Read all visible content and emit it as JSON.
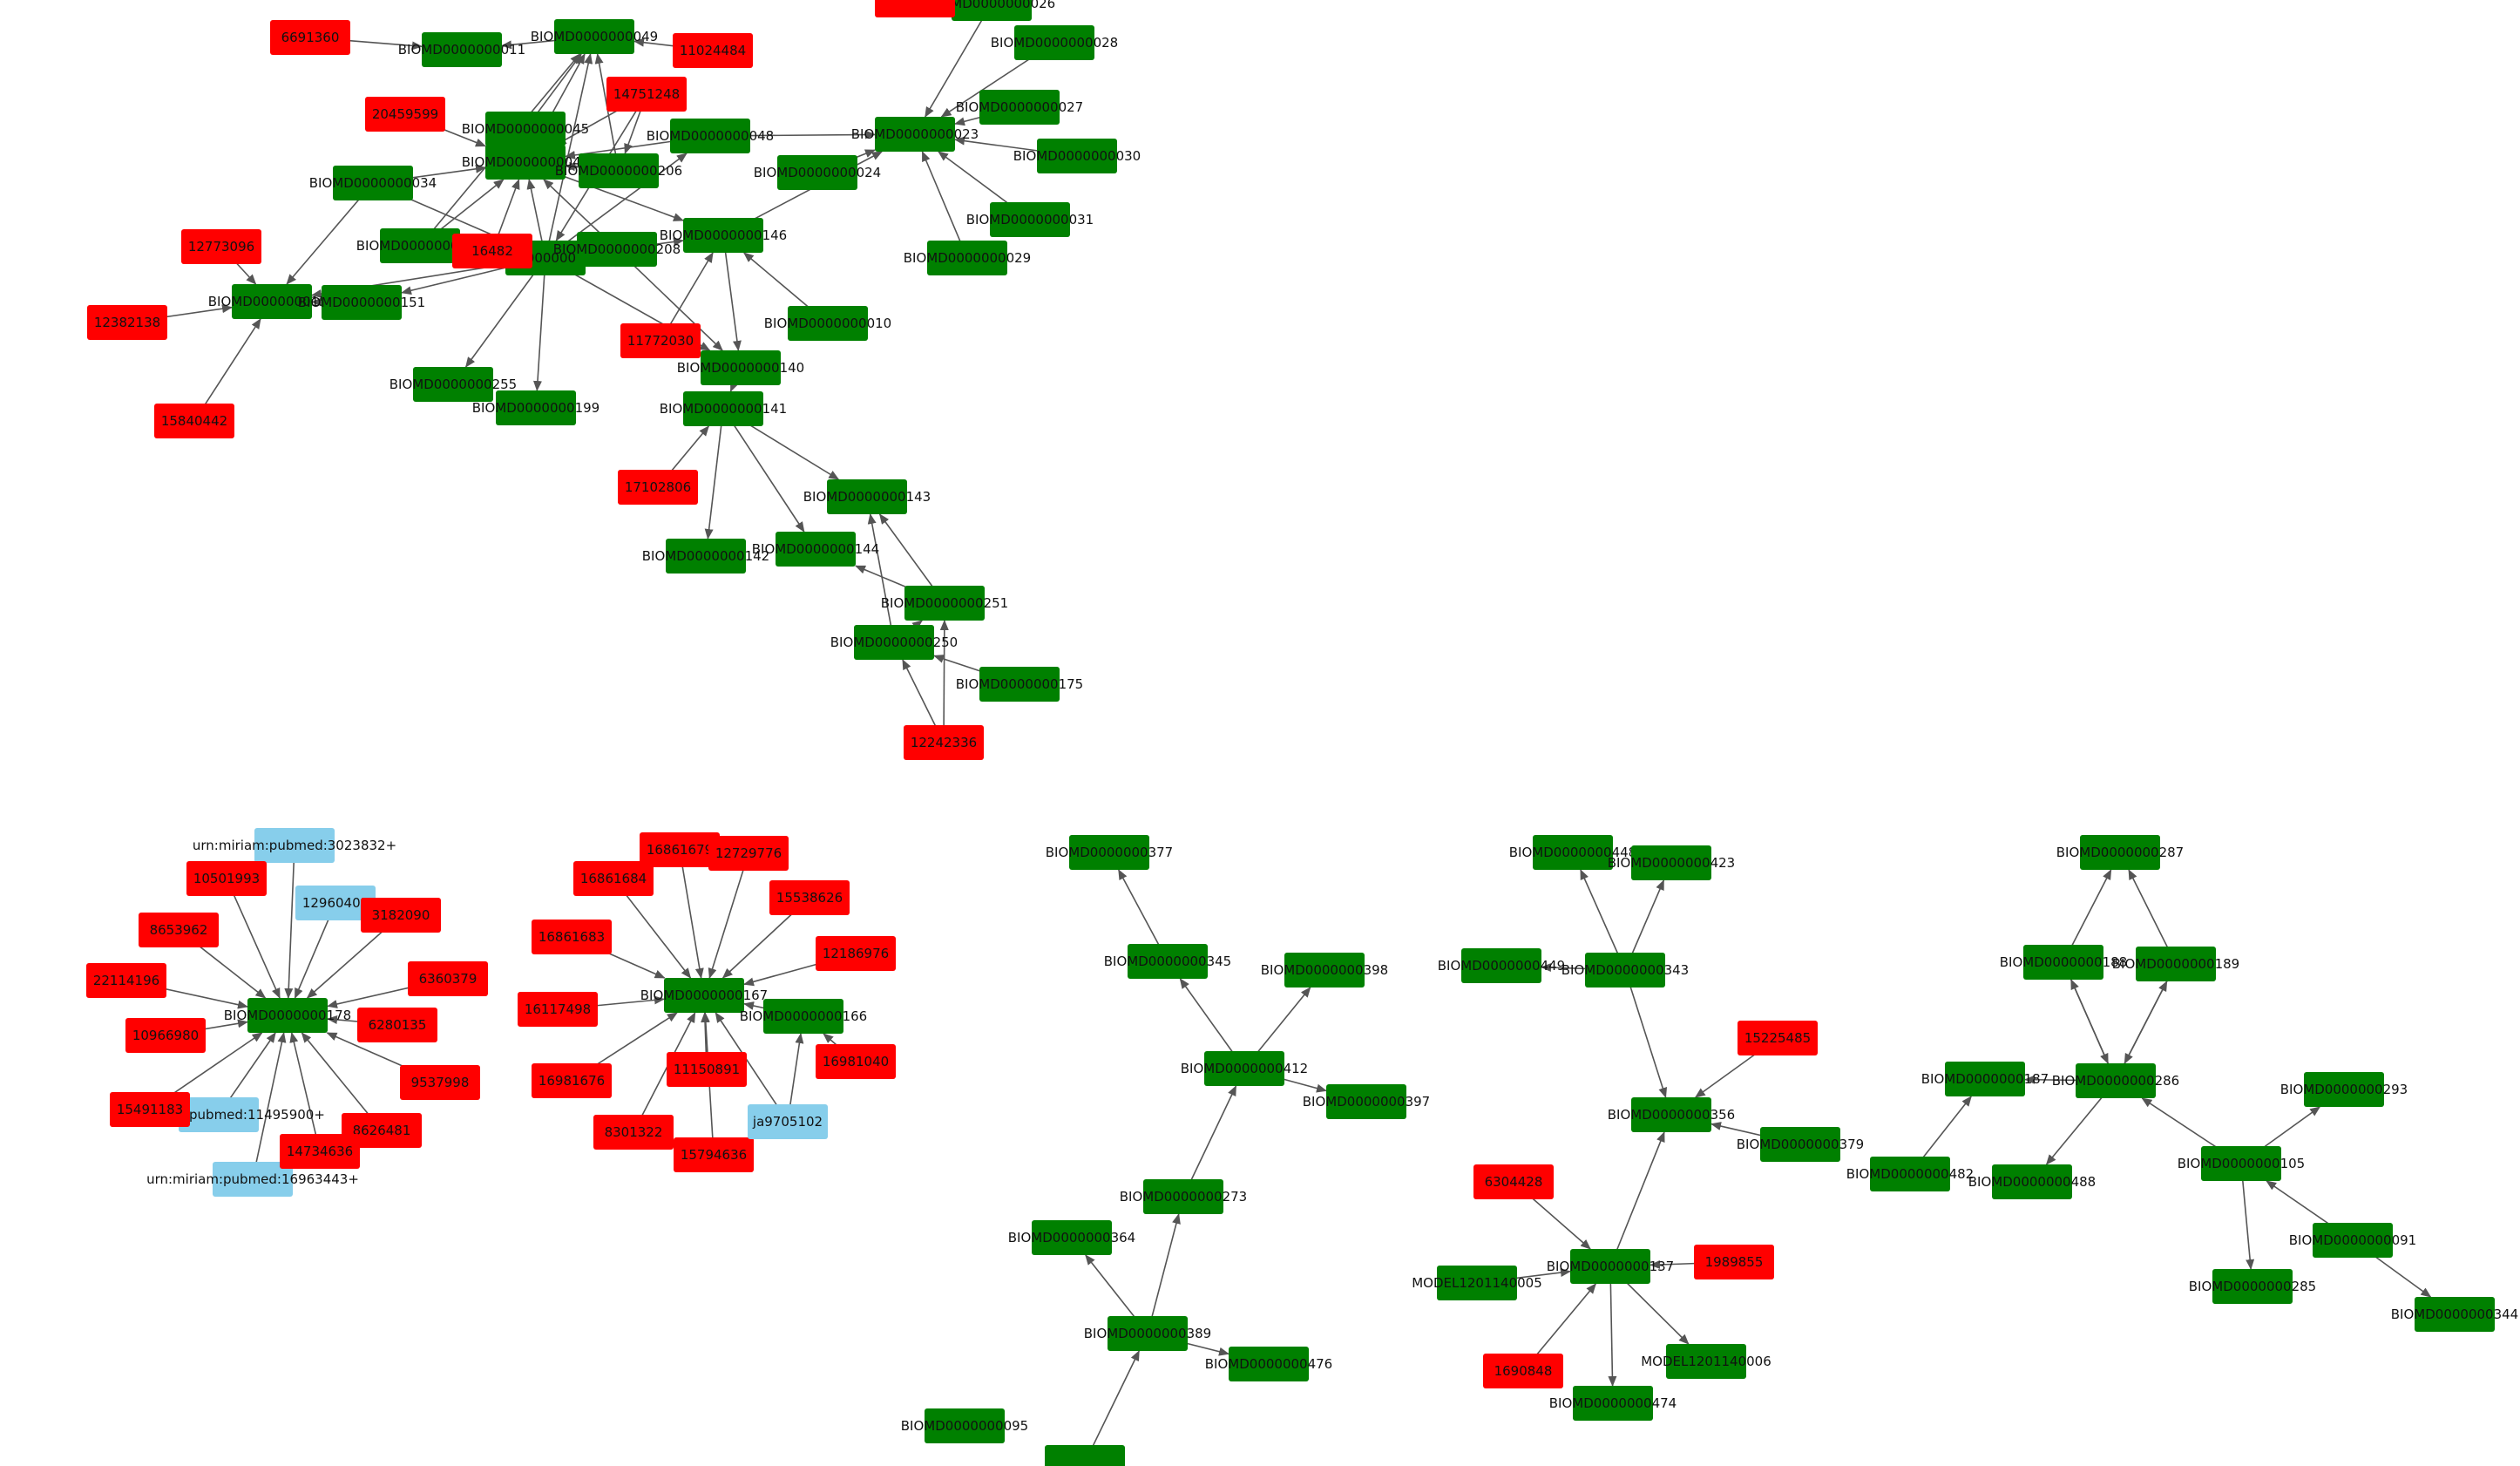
{
  "colors": {
    "biomodel": "#008000",
    "publication": "#ff0000",
    "miriam": "#87ceeb",
    "edge": "#555555",
    "label": "#111111",
    "background": "#ffffff"
  },
  "nodes": [
    {
      "id": "n11",
      "label": "BIOMD0000000011",
      "kind": "biomodel"
    },
    {
      "id": "n49",
      "label": "BIOMD0000000049",
      "kind": "biomodel"
    },
    {
      "id": "n26",
      "label": "BIOMD0000000026",
      "kind": "biomodel"
    },
    {
      "id": "n28",
      "label": "BIOMD0000000028",
      "kind": "biomodel"
    },
    {
      "id": "n27",
      "label": "BIOMD0000000027",
      "kind": "biomodel"
    },
    {
      "id": "n23",
      "label": "BIOMD0000000023",
      "kind": "biomodel"
    },
    {
      "id": "n30",
      "label": "BIOMD0000000030",
      "kind": "biomodel"
    },
    {
      "id": "n31",
      "label": "BIOMD0000000031",
      "kind": "biomodel"
    },
    {
      "id": "n29",
      "label": "BIOMD0000000029",
      "kind": "biomodel"
    },
    {
      "id": "n48",
      "label": "BIOMD0000000048",
      "kind": "biomodel"
    },
    {
      "id": "n24",
      "label": "BIOMD0000000024",
      "kind": "biomodel"
    },
    {
      "id": "n45",
      "label": "BIOMD0000000045",
      "kind": "biomodel"
    },
    {
      "id": "n44",
      "label": "BIOMD0000000044",
      "kind": "biomodel"
    },
    {
      "id": "n206",
      "label": "BIOMD0000000206",
      "kind": "biomodel"
    },
    {
      "id": "n34",
      "label": "BIOMD0000000034",
      "kind": "biomodel"
    },
    {
      "id": "n150",
      "label": "BIOMD0000000150",
      "kind": "biomodel"
    },
    {
      "id": "n38",
      "label": "BIOMD0000000038",
      "kind": "biomodel"
    },
    {
      "id": "n208",
      "label": "BIOMD0000000208",
      "kind": "biomodel"
    },
    {
      "id": "n146",
      "label": "BIOMD0000000146",
      "kind": "biomodel"
    },
    {
      "id": "n152",
      "label": "BIOMD0000000152",
      "kind": "biomodel"
    },
    {
      "id": "n151",
      "label": "BIOMD0000000151",
      "kind": "biomodel"
    },
    {
      "id": "n10",
      "label": "BIOMD0000000010",
      "kind": "biomodel"
    },
    {
      "id": "n255",
      "label": "BIOMD0000000255",
      "kind": "biomodel"
    },
    {
      "id": "n199",
      "label": "BIOMD0000000199",
      "kind": "biomodel"
    },
    {
      "id": "n140",
      "label": "BIOMD0000000140",
      "kind": "biomodel"
    },
    {
      "id": "n141",
      "label": "BIOMD0000000141",
      "kind": "biomodel"
    },
    {
      "id": "n143",
      "label": "BIOMD0000000143",
      "kind": "biomodel"
    },
    {
      "id": "n142",
      "label": "BIOMD0000000142",
      "kind": "biomodel"
    },
    {
      "id": "n144",
      "label": "BIOMD0000000144",
      "kind": "biomodel"
    },
    {
      "id": "n251",
      "label": "BIOMD0000000251",
      "kind": "biomodel"
    },
    {
      "id": "n250",
      "label": "BIOMD0000000250",
      "kind": "biomodel"
    },
    {
      "id": "n175",
      "label": "BIOMD0000000175",
      "kind": "biomodel"
    },
    {
      "id": "p6691360",
      "label": "6691360",
      "kind": "publication"
    },
    {
      "id": "p11024484",
      "label": "11024484",
      "kind": "publication"
    },
    {
      "id": "p14751248",
      "label": "14751248",
      "kind": "publication"
    },
    {
      "id": "p20459599",
      "label": "20459599",
      "kind": "publication"
    },
    {
      "id": "p12773096",
      "label": "12773096",
      "kind": "publication"
    },
    {
      "id": "p16482",
      "label": "16482",
      "kind": "publication"
    },
    {
      "id": "p12382138",
      "label": "12382138",
      "kind": "publication"
    },
    {
      "id": "p15840442",
      "label": "15840442",
      "kind": "publication"
    },
    {
      "id": "p11772030",
      "label": "11772030",
      "kind": "publication"
    },
    {
      "id": "p17102806",
      "label": "17102806",
      "kind": "publication"
    },
    {
      "id": "p12242336",
      "label": "12242336",
      "kind": "publication"
    },
    {
      "id": "nTop",
      "label": "",
      "kind": "publication"
    },
    {
      "id": "n178",
      "label": "BIOMD0000000178",
      "kind": "biomodel"
    },
    {
      "id": "m3023832",
      "label": "urn:miriam:pubmed:3023832+",
      "kind": "miriam"
    },
    {
      "id": "m12960403",
      "label": "12960403",
      "kind": "miriam"
    },
    {
      "id": "m11495900",
      "label": "urn:miriam:pubmed:11495900+",
      "kind": "miriam"
    },
    {
      "id": "m16963443",
      "label": "urn:miriam:pubmed:16963443+",
      "kind": "miriam"
    },
    {
      "id": "p10501993",
      "label": "10501993",
      "kind": "publication"
    },
    {
      "id": "p8653962",
      "label": "8653962",
      "kind": "publication"
    },
    {
      "id": "p3182090",
      "label": "3182090",
      "kind": "publication"
    },
    {
      "id": "p22114196",
      "label": "22114196",
      "kind": "publication"
    },
    {
      "id": "p6360379",
      "label": "6360379",
      "kind": "publication"
    },
    {
      "id": "p10966980",
      "label": "10966980",
      "kind": "publication"
    },
    {
      "id": "p6280135",
      "label": "6280135",
      "kind": "publication"
    },
    {
      "id": "p9537998",
      "label": "9537998",
      "kind": "publication"
    },
    {
      "id": "p15491183",
      "label": "15491183",
      "kind": "publication"
    },
    {
      "id": "p8626481",
      "label": "8626481",
      "kind": "publication"
    },
    {
      "id": "p14734636",
      "label": "14734636",
      "kind": "publication"
    },
    {
      "id": "n167",
      "label": "BIOMD0000000167",
      "kind": "biomodel"
    },
    {
      "id": "n166",
      "label": "BIOMD0000000166",
      "kind": "biomodel"
    },
    {
      "id": "p16861679",
      "label": "16861679",
      "kind": "publication"
    },
    {
      "id": "p12729776",
      "label": "12729776",
      "kind": "publication"
    },
    {
      "id": "p16861684",
      "label": "16861684",
      "kind": "publication"
    },
    {
      "id": "p15538626",
      "label": "15538626",
      "kind": "publication"
    },
    {
      "id": "p16861683",
      "label": "16861683",
      "kind": "publication"
    },
    {
      "id": "p12186976",
      "label": "12186976",
      "kind": "publication"
    },
    {
      "id": "p16117498",
      "label": "16117498",
      "kind": "publication"
    },
    {
      "id": "p11150891",
      "label": "11150891",
      "kind": "publication"
    },
    {
      "id": "p16981040",
      "label": "16981040",
      "kind": "publication"
    },
    {
      "id": "p16981676",
      "label": "16981676",
      "kind": "publication"
    },
    {
      "id": "p8301322",
      "label": "8301322",
      "kind": "publication"
    },
    {
      "id": "p15794636",
      "label": "15794636",
      "kind": "publication"
    },
    {
      "id": "m9705102",
      "label": "ja9705102",
      "kind": "miriam"
    },
    {
      "id": "n377",
      "label": "BIOMD0000000377",
      "kind": "biomodel"
    },
    {
      "id": "n345",
      "label": "BIOMD0000000345",
      "kind": "biomodel"
    },
    {
      "id": "n398",
      "label": "BIOMD0000000398",
      "kind": "biomodel"
    },
    {
      "id": "n412",
      "label": "BIOMD0000000412",
      "kind": "biomodel"
    },
    {
      "id": "n397",
      "label": "BIOMD0000000397",
      "kind": "biomodel"
    },
    {
      "id": "n273",
      "label": "BIOMD0000000273",
      "kind": "biomodel"
    },
    {
      "id": "n364",
      "label": "BIOMD0000000364",
      "kind": "biomodel"
    },
    {
      "id": "n389",
      "label": "BIOMD0000000389",
      "kind": "biomodel"
    },
    {
      "id": "n476",
      "label": "BIOMD0000000476",
      "kind": "biomodel"
    },
    {
      "id": "n095",
      "label": "BIOMD0000000095",
      "kind": "biomodel"
    },
    {
      "id": "nBottom",
      "label": "",
      "kind": "biomodel"
    },
    {
      "id": "n448",
      "label": "BIOMD0000000448",
      "kind": "biomodel"
    },
    {
      "id": "n423",
      "label": "BIOMD0000000423",
      "kind": "biomodel"
    },
    {
      "id": "n449",
      "label": "BIOMD0000000449",
      "kind": "biomodel"
    },
    {
      "id": "n343",
      "label": "BIOMD0000000343",
      "kind": "biomodel"
    },
    {
      "id": "p15225485",
      "label": "15225485",
      "kind": "publication"
    },
    {
      "id": "n356",
      "label": "BIOMD0000000356",
      "kind": "biomodel"
    },
    {
      "id": "n379",
      "label": "BIOMD0000000379",
      "kind": "biomodel"
    },
    {
      "id": "p6304428",
      "label": "6304428",
      "kind": "publication"
    },
    {
      "id": "n137",
      "label": "BIOMD0000000137",
      "kind": "biomodel"
    },
    {
      "id": "p1989855",
      "label": "1989855",
      "kind": "publication"
    },
    {
      "id": "m1005",
      "label": "MODEL1201140005",
      "kind": "biomodel"
    },
    {
      "id": "p1690848",
      "label": "1690848",
      "kind": "publication"
    },
    {
      "id": "m1006",
      "label": "MODEL1201140006",
      "kind": "biomodel"
    },
    {
      "id": "n474",
      "label": "BIOMD0000000474",
      "kind": "biomodel"
    },
    {
      "id": "n287",
      "label": "BIOMD0000000287",
      "kind": "biomodel"
    },
    {
      "id": "n188",
      "label": "BIOMD0000000188",
      "kind": "biomodel"
    },
    {
      "id": "n189",
      "label": "BIOMD0000000189",
      "kind": "biomodel"
    },
    {
      "id": "n187",
      "label": "BIOMD0000000187",
      "kind": "biomodel"
    },
    {
      "id": "n286",
      "label": "BIOMD0000000286",
      "kind": "biomodel"
    },
    {
      "id": "n482",
      "label": "BIOMD0000000482",
      "kind": "biomodel"
    },
    {
      "id": "n488",
      "label": "BIOMD0000000488",
      "kind": "biomodel"
    },
    {
      "id": "n293",
      "label": "BIOMD0000000293",
      "kind": "biomodel"
    },
    {
      "id": "n105",
      "label": "BIOMD0000000105",
      "kind": "biomodel"
    },
    {
      "id": "n091",
      "label": "BIOMD0000000091",
      "kind": "biomodel"
    },
    {
      "id": "n285",
      "label": "BIOMD0000000285",
      "kind": "biomodel"
    },
    {
      "id": "n344",
      "label": "BIOMD0000000344",
      "kind": "biomodel"
    }
  ],
  "edges": [
    [
      "p6691360",
      "n11"
    ],
    [
      "n49",
      "n11"
    ],
    [
      "p11024484",
      "n49"
    ],
    [
      "n44",
      "n49"
    ],
    [
      "n45",
      "n49"
    ],
    [
      "n38",
      "n49"
    ],
    [
      "n206",
      "n49"
    ],
    [
      "p14751248",
      "n44"
    ],
    [
      "n150",
      "n49"
    ],
    [
      "n26",
      "n23"
    ],
    [
      "n28",
      "n23"
    ],
    [
      "n27",
      "n23"
    ],
    [
      "n30",
      "n23"
    ],
    [
      "n31",
      "n23"
    ],
    [
      "n29",
      "n23"
    ],
    [
      "n48",
      "n23"
    ],
    [
      "n24",
      "n23"
    ],
    [
      "n146",
      "n23"
    ],
    [
      "p20459599",
      "n44"
    ],
    [
      "n34",
      "n44"
    ],
    [
      "n38",
      "n44"
    ],
    [
      "n206",
      "n44"
    ],
    [
      "n48",
      "n44"
    ],
    [
      "n150",
      "n44"
    ],
    [
      "n208",
      "n44"
    ],
    [
      "n38",
      "n48"
    ],
    [
      "n44",
      "n206"
    ],
    [
      "p14751248",
      "n206"
    ],
    [
      "p14751248",
      "n38"
    ],
    [
      "n34",
      "n38"
    ],
    [
      "n150",
      "n38"
    ],
    [
      "n208",
      "n38"
    ],
    [
      "n34",
      "n152"
    ],
    [
      "n38",
      "n151"
    ],
    [
      "p12773096",
      "n152"
    ],
    [
      "p12382138",
      "n152"
    ],
    [
      "p15840442",
      "n152"
    ],
    [
      "n151",
      "n152"
    ],
    [
      "n38",
      "n152"
    ],
    [
      "n38",
      "n255"
    ],
    [
      "n38",
      "n199"
    ],
    [
      "n38",
      "n140"
    ],
    [
      "n44",
      "n146"
    ],
    [
      "n208",
      "n140"
    ],
    [
      "n146",
      "n140"
    ],
    [
      "n10",
      "n146"
    ],
    [
      "n140",
      "n141"
    ],
    [
      "p11772030",
      "n146"
    ],
    [
      "p17102806",
      "n141"
    ],
    [
      "n141",
      "n142"
    ],
    [
      "n141",
      "n144"
    ],
    [
      "n141",
      "n143"
    ],
    [
      "n251",
      "n143"
    ],
    [
      "n250",
      "n143"
    ],
    [
      "n251",
      "n144"
    ],
    [
      "n250",
      "n251"
    ],
    [
      "n175",
      "n250"
    ],
    [
      "p12242336",
      "n250"
    ],
    [
      "p12242336",
      "n251"
    ],
    [
      "n208",
      "n146"
    ],
    [
      "p16482",
      "n44"
    ],
    [
      "m3023832",
      "n178"
    ],
    [
      "m12960403",
      "n178"
    ],
    [
      "p10501993",
      "n178"
    ],
    [
      "p8653962",
      "n178"
    ],
    [
      "p3182090",
      "n178"
    ],
    [
      "p22114196",
      "n178"
    ],
    [
      "p6360379",
      "n178"
    ],
    [
      "p10966980",
      "n178"
    ],
    [
      "p6280135",
      "n178"
    ],
    [
      "p9537998",
      "n178"
    ],
    [
      "p15491183",
      "n178"
    ],
    [
      "m11495900",
      "n178"
    ],
    [
      "p8626481",
      "n178"
    ],
    [
      "p14734636",
      "n178"
    ],
    [
      "m16963443",
      "n178"
    ],
    [
      "p16861679",
      "n167"
    ],
    [
      "p12729776",
      "n167"
    ],
    [
      "p16861684",
      "n167"
    ],
    [
      "p15538626",
      "n167"
    ],
    [
      "p16861683",
      "n167"
    ],
    [
      "p12186976",
      "n167"
    ],
    [
      "p16117498",
      "n167"
    ],
    [
      "p11150891",
      "n167"
    ],
    [
      "p16981676",
      "n167"
    ],
    [
      "p8301322",
      "n167"
    ],
    [
      "p15794636",
      "n167"
    ],
    [
      "n166",
      "n167"
    ],
    [
      "m9705102",
      "n167"
    ],
    [
      "m9705102",
      "n166"
    ],
    [
      "p16981040",
      "n166"
    ],
    [
      "n345",
      "n377"
    ],
    [
      "n412",
      "n345"
    ],
    [
      "n412",
      "n398"
    ],
    [
      "n412",
      "n397"
    ],
    [
      "n273",
      "n412"
    ],
    [
      "n389",
      "n273"
    ],
    [
      "n389",
      "n364"
    ],
    [
      "n389",
      "n476"
    ],
    [
      "nBottom",
      "n389"
    ],
    [
      "n343",
      "n448"
    ],
    [
      "n343",
      "n423"
    ],
    [
      "n343",
      "n449"
    ],
    [
      "n343",
      "n356"
    ],
    [
      "p15225485",
      "n356"
    ],
    [
      "n379",
      "n356"
    ],
    [
      "n137",
      "n356"
    ],
    [
      "p6304428",
      "n137"
    ],
    [
      "p1989855",
      "n137"
    ],
    [
      "m1005",
      "n137"
    ],
    [
      "p1690848",
      "n137"
    ],
    [
      "n137",
      "m1006"
    ],
    [
      "n137",
      "n474"
    ],
    [
      "n286",
      "n188"
    ],
    [
      "n286",
      "n189"
    ],
    [
      "n188",
      "n287"
    ],
    [
      "n189",
      "n287"
    ],
    [
      "n188",
      "n286"
    ],
    [
      "n189",
      "n286"
    ],
    [
      "n286",
      "n187"
    ],
    [
      "n482",
      "n187"
    ],
    [
      "n286",
      "n488"
    ],
    [
      "n105",
      "n286"
    ],
    [
      "n105",
      "n293"
    ],
    [
      "n105",
      "n285"
    ],
    [
      "n091",
      "n105"
    ],
    [
      "n091",
      "n344"
    ]
  ]
}
